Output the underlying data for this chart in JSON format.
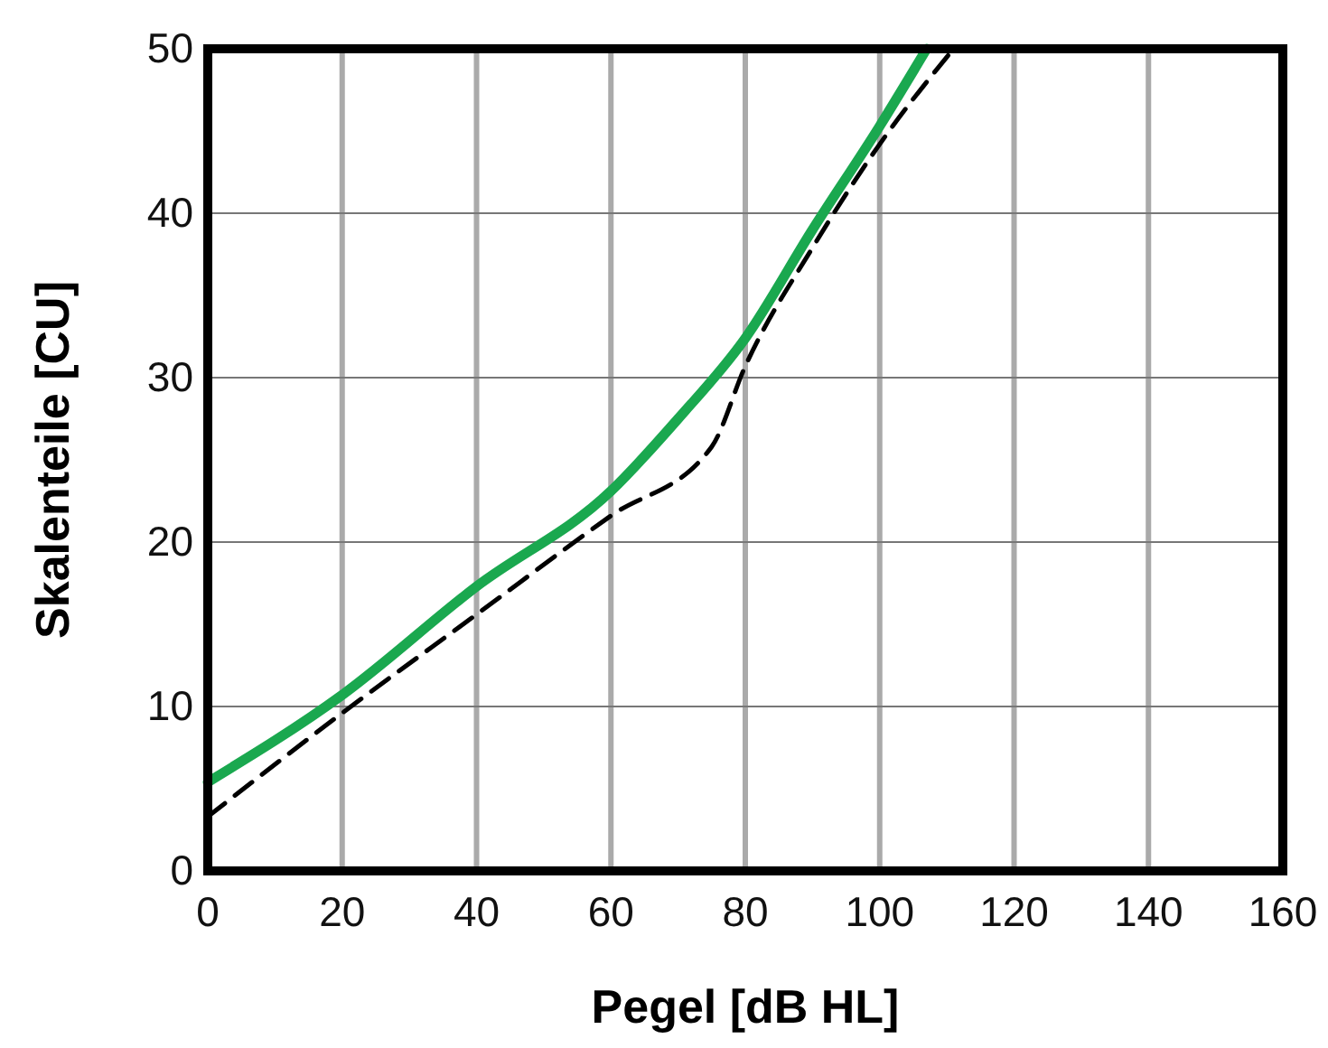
{
  "chart_data": {
    "type": "line",
    "xlabel": "Pegel [dB HL]",
    "ylabel": "Skalenteile [CU]",
    "xlim": [
      0,
      160
    ],
    "xticks": [
      0,
      20,
      40,
      60,
      80,
      100,
      120,
      140,
      160
    ],
    "ylim": [
      0,
      50
    ],
    "yticks": [
      0,
      10,
      20,
      30,
      40,
      50
    ],
    "grid": true,
    "series": [
      {
        "color": "#1aa84f",
        "line_style": "solid",
        "x": [
          0,
          20,
          40,
          60,
          70,
          80,
          90,
          100,
          107
        ],
        "values": [
          5.4,
          10.7,
          17.3,
          23.1,
          27.5,
          32.4,
          39,
          45.3,
          50
        ]
      },
      {
        "color": "#000000",
        "line_style": "dashed",
        "x": [
          0,
          20,
          40,
          60,
          75,
          80,
          90,
          100,
          111
        ],
        "values": [
          3.3,
          9.6,
          15.6,
          21.6,
          25.8,
          30.7,
          37.9,
          44.2,
          50
        ]
      }
    ]
  }
}
